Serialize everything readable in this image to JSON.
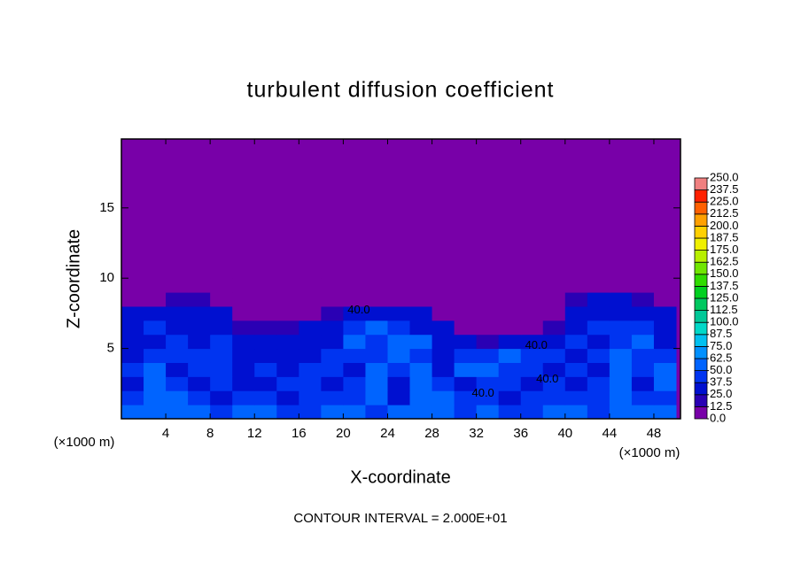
{
  "chart_data": {
    "type": "contour",
    "title": "turbulent diffusion coefficient",
    "x_label": "X-coordinate",
    "y_label": "Z-coordinate",
    "x_unit": "(×1000 m)",
    "footer": "CONTOUR INTERVAL = 2.000E+01",
    "background": "#7800a8",
    "xlim": [
      0,
      50.4
    ],
    "ylim": [
      0,
      19.9
    ],
    "xticks": [
      4,
      8,
      12,
      16,
      20,
      24,
      28,
      32,
      36,
      40,
      44,
      48
    ],
    "yticks": [
      5,
      10,
      15
    ],
    "x": [
      1,
      3,
      5,
      7,
      9,
      11,
      13,
      15,
      17,
      19,
      21,
      23,
      25,
      27,
      29,
      31,
      33,
      35,
      37,
      39,
      41,
      43,
      45,
      47,
      49
    ],
    "y": [
      0.5,
      1.5,
      2.5,
      3.5,
      4.5,
      5.5,
      6.5,
      7.5,
      8.5,
      9.5
    ],
    "values": [
      [
        55,
        60,
        50,
        55,
        45,
        50,
        55,
        45,
        40,
        50,
        55,
        45,
        50,
        60,
        55,
        45,
        50,
        45,
        45,
        50,
        55,
        45,
        50,
        55,
        50
      ],
      [
        40,
        50,
        60,
        40,
        35,
        40,
        45,
        35,
        40,
        45,
        40,
        50,
        35,
        55,
        60,
        45,
        40,
        35,
        40,
        45,
        40,
        45,
        60,
        40,
        45
      ],
      [
        35,
        55,
        45,
        35,
        40,
        30,
        35,
        40,
        45,
        35,
        45,
        60,
        35,
        60,
        45,
        35,
        40,
        45,
        35,
        40,
        35,
        40,
        60,
        35,
        55
      ],
      [
        40,
        60,
        35,
        40,
        45,
        35,
        40,
        35,
        40,
        45,
        35,
        55,
        40,
        55,
        35,
        55,
        50,
        40,
        45,
        35,
        40,
        35,
        55,
        40,
        60
      ],
      [
        35,
        45,
        40,
        45,
        40,
        35,
        30,
        35,
        30,
        40,
        45,
        40,
        50,
        40,
        35,
        40,
        45,
        50,
        40,
        40,
        35,
        40,
        50,
        45,
        40
      ],
      [
        30,
        35,
        45,
        35,
        40,
        30,
        25,
        30,
        35,
        30,
        50,
        45,
        55,
        50,
        30,
        25,
        20,
        30,
        25,
        30,
        40,
        35,
        45,
        50,
        35
      ],
      [
        30,
        40,
        35,
        30,
        35,
        20,
        15,
        20,
        30,
        25,
        40,
        50,
        45,
        35,
        25,
        10,
        0,
        0,
        10,
        20,
        35,
        40,
        40,
        45,
        30
      ],
      [
        25,
        30,
        30,
        35,
        25,
        10,
        0,
        0,
        10,
        15,
        30,
        35,
        30,
        25,
        10,
        0,
        0,
        0,
        0,
        10,
        30,
        35,
        30,
        35,
        25
      ],
      [
        10,
        0,
        15,
        20,
        5,
        0,
        0,
        0,
        0,
        0,
        10,
        10,
        5,
        0,
        0,
        0,
        0,
        0,
        0,
        0,
        15,
        30,
        25,
        20,
        10
      ],
      [
        0,
        0,
        0,
        0,
        0,
        0,
        0,
        0,
        0,
        0,
        0,
        0,
        0,
        0,
        0,
        0,
        0,
        0,
        0,
        0,
        0,
        0,
        0,
        0,
        0
      ]
    ],
    "contour_labels": [
      {
        "text": "40.0",
        "x": 21.4,
        "y": 7.7
      },
      {
        "text": "40.0",
        "x": 37.4,
        "y": 5.2
      },
      {
        "text": "40.0",
        "x": 38.4,
        "y": 2.8
      },
      {
        "text": "40.0",
        "x": 32.6,
        "y": 1.8
      }
    ],
    "colorbar": {
      "ticks": [
        {
          "value": 0,
          "label": "0.0"
        },
        12.5,
        {
          "value": 25,
          "label": "25.0"
        },
        37.5,
        {
          "value": 50,
          "label": "50.0"
        },
        62.5,
        {
          "value": 75,
          "label": "75.0"
        },
        87.5,
        {
          "value": 100,
          "label": "100.0"
        },
        112.5,
        {
          "value": 125,
          "label": "125.0"
        },
        137.5,
        {
          "value": 150,
          "label": "150.0"
        },
        162.5,
        {
          "value": 175,
          "label": "175.0"
        },
        187.5,
        {
          "value": 200,
          "label": "200.0"
        },
        212.5,
        {
          "value": 225,
          "label": "225.0"
        },
        237.5,
        {
          "value": 250,
          "label": "250.0"
        }
      ],
      "colors": [
        "#7800a8",
        "#2a00b4",
        "#0010d0",
        "#0034f0",
        "#0064ff",
        "#0090ff",
        "#00c0f0",
        "#00d8c8",
        "#00c898",
        "#00c860",
        "#00d020",
        "#30dc00",
        "#70e600",
        "#b8f000",
        "#f0f000",
        "#ffd000",
        "#ffa000",
        "#ff6000",
        "#ff2000",
        "#f08080"
      ]
    }
  }
}
